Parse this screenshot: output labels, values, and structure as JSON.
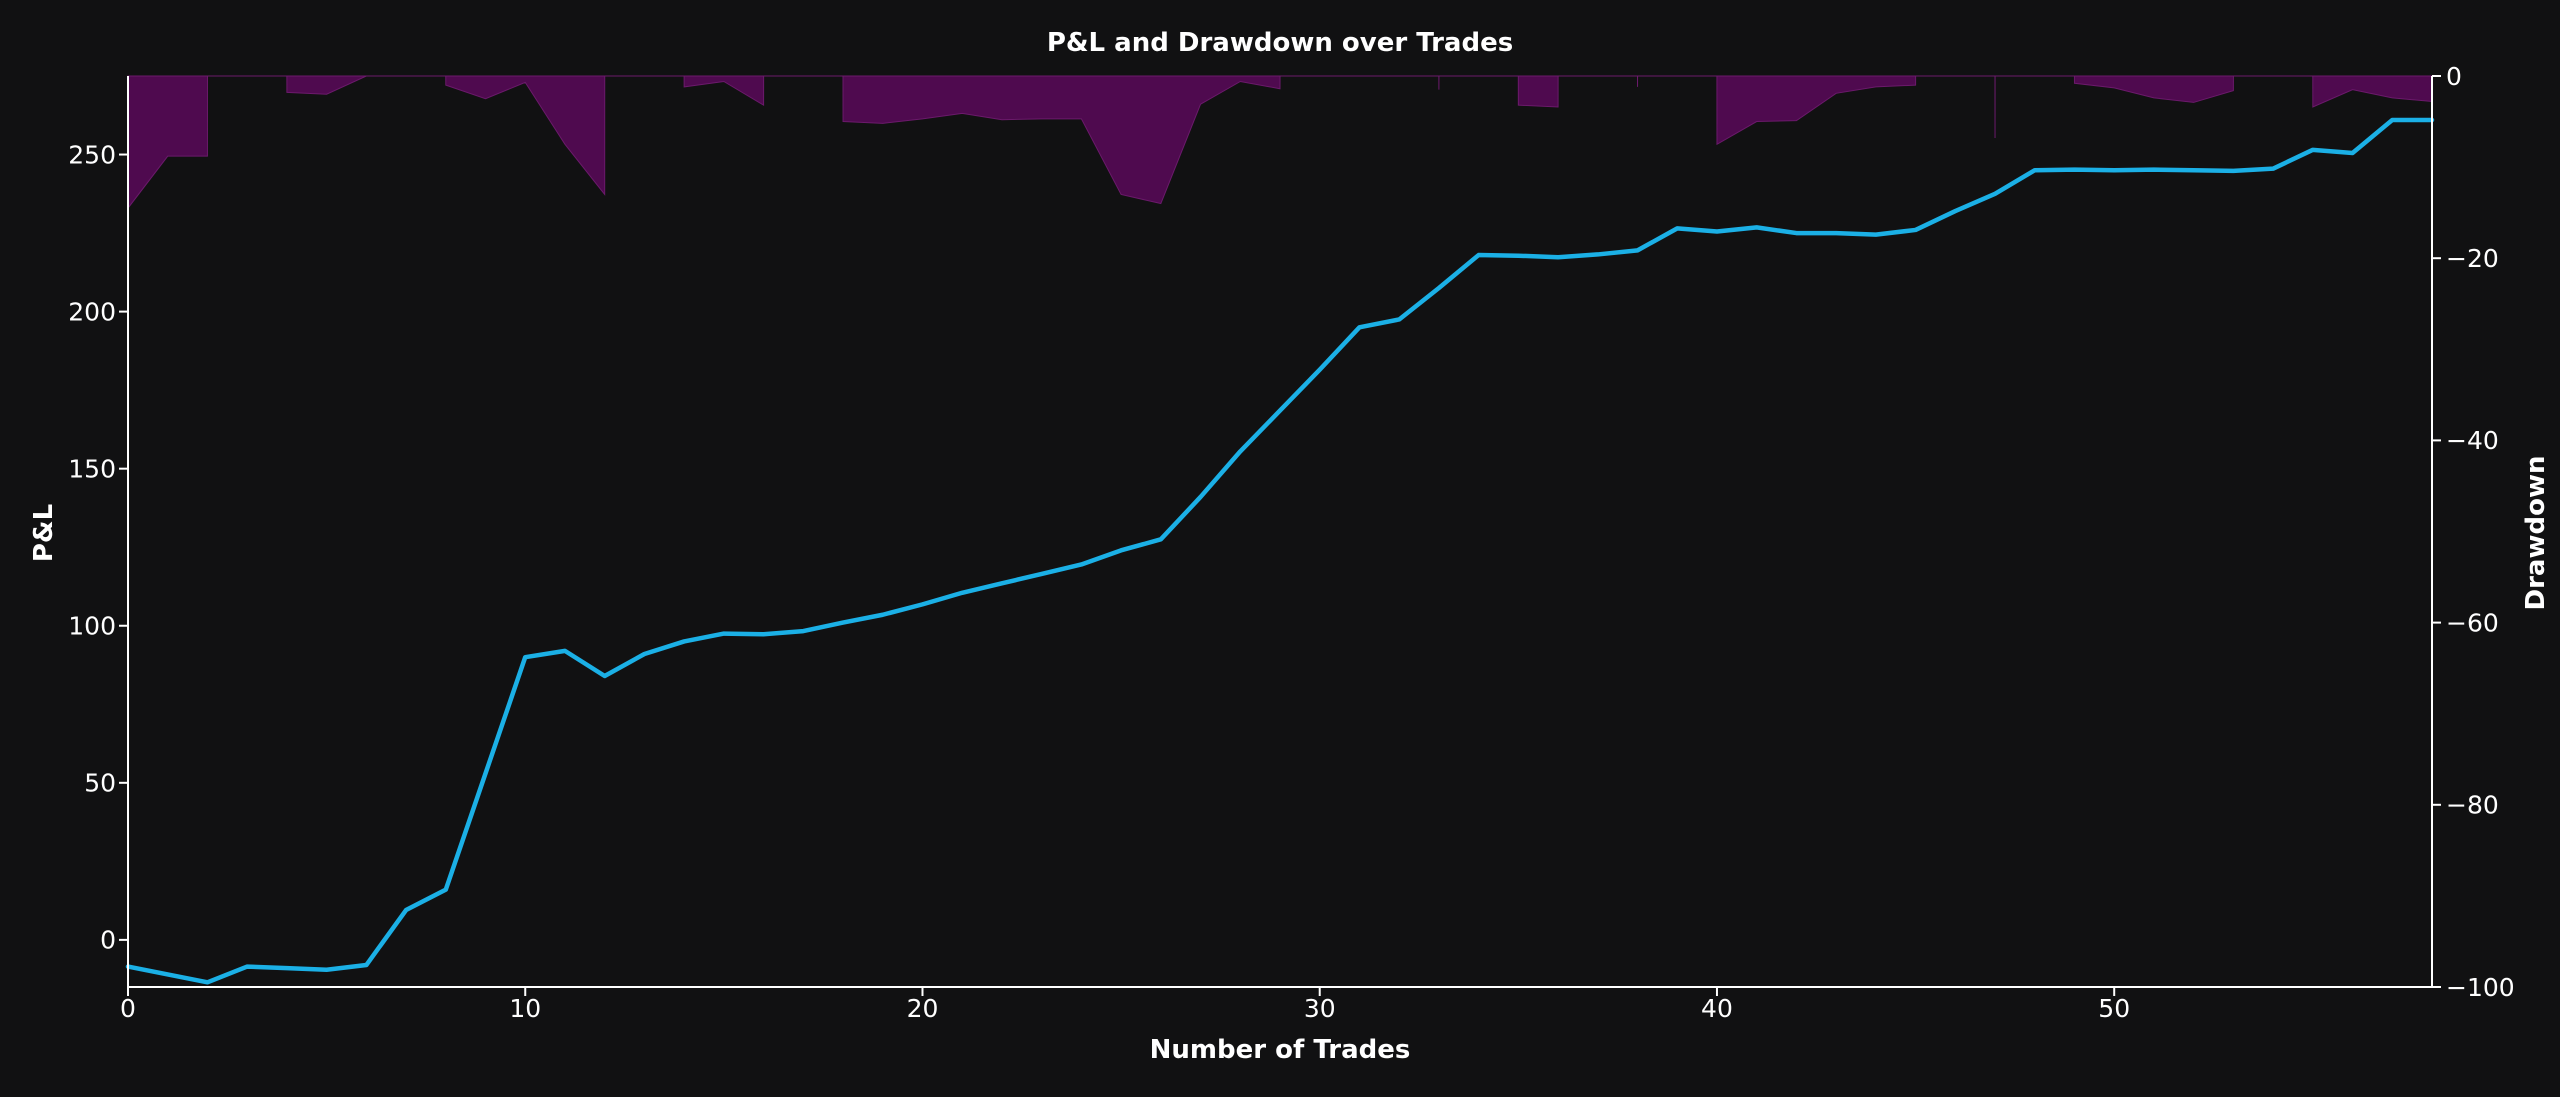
{
  "colors": {
    "background": "#111112",
    "pnl_line": "#1bb0e6",
    "drawdown_fill": "#4f0a4f",
    "drawdown_edge": "#6b1a6b",
    "axis": "#ffffff",
    "text": "#ffffff"
  },
  "chart_data": {
    "type": "line",
    "title": "P&L and Drawdown over Trades",
    "xlabel": "Number of Trades",
    "ylabel": "P&L",
    "y2label": "Drawdown",
    "xlim": [
      0,
      58
    ],
    "ylim": [
      -15,
      275
    ],
    "y2lim": [
      -100,
      0
    ],
    "xticks": [
      0,
      10,
      20,
      30,
      40,
      50
    ],
    "yticks": [
      0,
      50,
      100,
      150,
      200,
      250
    ],
    "y2ticks": [
      0,
      -20,
      -40,
      -60,
      -80,
      -100
    ],
    "xtick_labels": [
      "0",
      "10",
      "20",
      "30",
      "40",
      "50"
    ],
    "ytick_labels": [
      "0",
      "50",
      "100",
      "150",
      "200",
      "250"
    ],
    "y2tick_labels": [
      "0",
      "−20",
      "−40",
      "−60",
      "−80",
      "−100"
    ],
    "grid": false,
    "series": [
      {
        "axis": "left",
        "style": "line",
        "x": [
          0,
          1,
          2,
          3,
          4,
          5,
          6,
          7,
          8,
          9,
          10,
          11,
          12,
          13,
          14,
          15,
          16,
          17,
          18,
          19,
          20,
          21,
          22,
          23,
          24,
          25,
          26,
          27,
          28,
          29,
          30,
          31,
          32,
          33,
          34,
          35,
          36,
          37,
          38,
          39,
          40,
          41,
          42,
          43,
          44,
          45,
          46,
          47,
          48,
          49,
          50,
          51,
          52,
          53,
          54,
          55,
          56,
          57,
          58
        ],
        "values": [
          -8.5,
          -11,
          -13.5,
          -8.5,
          -9,
          -9.5,
          -8,
          9.5,
          16,
          53,
          90,
          92,
          84,
          91,
          95,
          97.5,
          97.3,
          98.3,
          101,
          103.5,
          106.8,
          110.5,
          113.5,
          116.5,
          119.5,
          124,
          127.5,
          141,
          155.5,
          168.5,
          181.5,
          195,
          197.5,
          207.5,
          218,
          217.8,
          217.3,
          218.2,
          219.5,
          226.5,
          225.5,
          226.8,
          225,
          225,
          224.5,
          226,
          232,
          237.5,
          245,
          245.2,
          245,
          245.2,
          245,
          244.8,
          245.5,
          251.5,
          250.5,
          261,
          261
        ]
      },
      {
        "axis": "right",
        "style": "area",
        "x": [
          0,
          1,
          2,
          2.001,
          3,
          3.999,
          4,
          5,
          6,
          6.001,
          7,
          7.999,
          8,
          9,
          10,
          11,
          12,
          12.001,
          13,
          13.999,
          14,
          15,
          16,
          16.001,
          17,
          17.999,
          18,
          19,
          20,
          21,
          22,
          23,
          24,
          25,
          26,
          27,
          28,
          29,
          29.001,
          30,
          32.999,
          33,
          33.001,
          34,
          34.999,
          35,
          36,
          36.001,
          37,
          37.999,
          38,
          38.001,
          39,
          39.999,
          40,
          41,
          42,
          43,
          44,
          45,
          45.001,
          46,
          46.999,
          47,
          47.001,
          48,
          48.999,
          49,
          50,
          51,
          52,
          53,
          53.001,
          54,
          54.999,
          55,
          56,
          57,
          58
        ],
        "values": [
          -14.5,
          -8.8,
          -8.8,
          0,
          0,
          0,
          -1.8,
          -2,
          0,
          0,
          0,
          0,
          -1,
          -2.5,
          -0.7,
          -7.5,
          -13,
          0,
          0,
          0,
          -1.2,
          -0.6,
          -3.2,
          0,
          0,
          0,
          -5,
          -5.2,
          -4.7,
          -4.1,
          -4.8,
          -4.7,
          -4.7,
          -13,
          -14,
          -3.1,
          -0.6,
          -1.4,
          0,
          0,
          0,
          -1.5,
          0,
          0,
          0,
          -3.2,
          -3.4,
          0,
          0,
          0,
          -1.2,
          0,
          0,
          0,
          -7.5,
          -5,
          -4.9,
          -1.9,
          -1.2,
          -1,
          0,
          0,
          0,
          -6.8,
          0,
          0,
          0,
          -0.8,
          -1.3,
          -2.4,
          -2.9,
          -1.6,
          0,
          0,
          0,
          -3.4,
          -1.5,
          -2.4,
          -2.8
        ]
      }
    ]
  }
}
